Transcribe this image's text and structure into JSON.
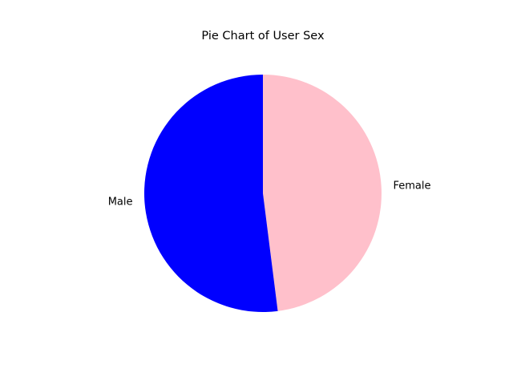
{
  "chart_data": {
    "type": "pie",
    "title": "Pie Chart of User Sex",
    "categories": [
      "Female",
      "Male"
    ],
    "values": [
      48,
      52
    ],
    "colors": [
      "#ffc0cb",
      "#0000ff"
    ],
    "start_angle": 90,
    "direction": "clockwise",
    "legend": "none",
    "labels_outside": true
  }
}
